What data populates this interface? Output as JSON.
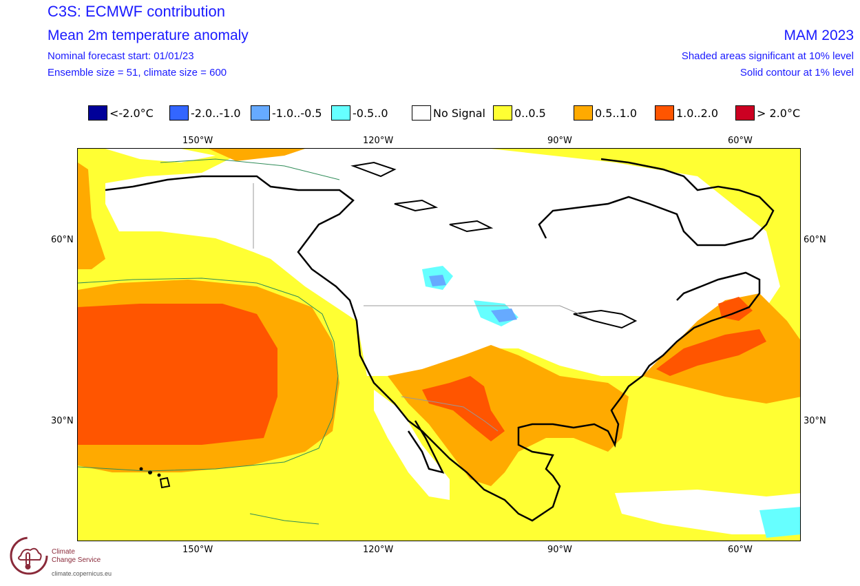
{
  "header": {
    "title": "C3S: ECMWF contribution",
    "subtitle": "Mean 2m temperature anomaly",
    "forecast_start": "Nominal forecast start: 01/01/23",
    "ensemble": "Ensemble size = 51, climate size = 600",
    "period": "MAM 2023",
    "note_shaded": "Shaded areas significant at 10% level",
    "note_contour": "Solid contour at 1% level"
  },
  "legend": [
    {
      "label": "<-2.0°C",
      "color": "#000099"
    },
    {
      "label": "-2.0..-1.0",
      "color": "#3366ff"
    },
    {
      "label": "-1.0..-0.5",
      "color": "#66aaff"
    },
    {
      "label": "-0.5..0",
      "color": "#66ffff"
    },
    {
      "label": "No Signal",
      "color": "#ffffff"
    },
    {
      "label": "0..0.5",
      "color": "#ffff33"
    },
    {
      "label": "0.5..1.0",
      "color": "#ffaa00"
    },
    {
      "label": "1.0..2.0",
      "color": "#ff5500"
    },
    {
      "label": "> 2.0°C",
      "color": "#cc0022"
    }
  ],
  "axes": {
    "lon_ticks": [
      "150°W",
      "120°W",
      "90°W",
      "60°W"
    ],
    "lat_ticks": [
      "60°N",
      "30°N"
    ]
  },
  "logo": {
    "name_line1": "Climate",
    "name_line2": "Change Service",
    "url": "climate.copernicus.eu"
  }
}
